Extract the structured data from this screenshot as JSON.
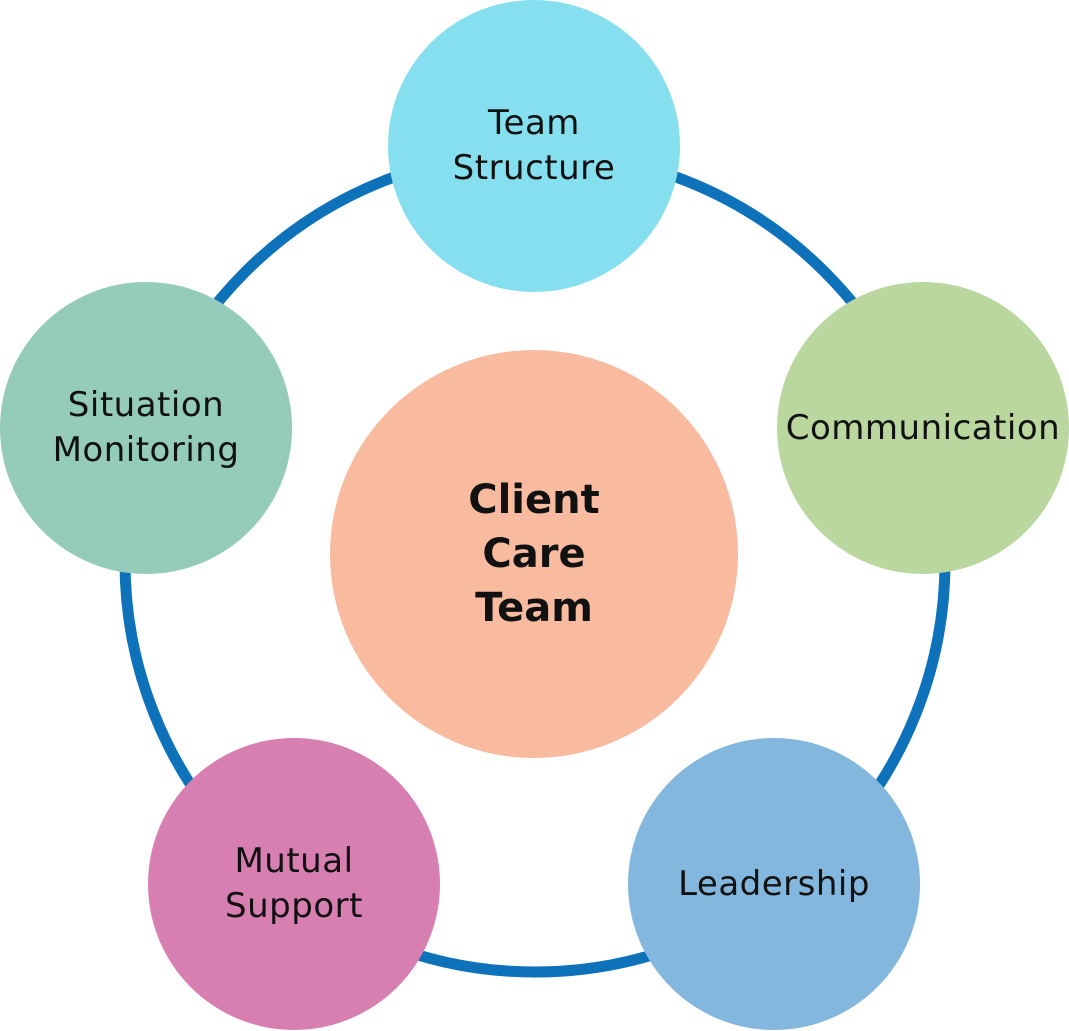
{
  "diagram": {
    "center": {
      "label": "Client\nCare\nTeam",
      "color": "#F8BBA0"
    },
    "ring_color": "#0D72BA",
    "nodes": [
      {
        "id": "team-structure",
        "label": "Team\nStructure",
        "color": "#86DFEE"
      },
      {
        "id": "communication",
        "label": "Communication",
        "color": "#BAD7A0"
      },
      {
        "id": "leadership",
        "label": "Leadership",
        "color": "#83B7DD"
      },
      {
        "id": "mutual-support",
        "label": "Mutual\nSupport",
        "color": "#D87FB2"
      },
      {
        "id": "situation-monitoring",
        "label": "Situation\nMonitoring",
        "color": "#95CBBA"
      }
    ]
  }
}
